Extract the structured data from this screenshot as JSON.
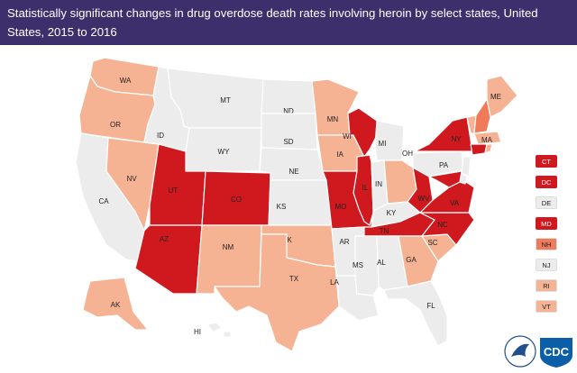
{
  "title": "Statistically significant changes in drug overdose death rates involving heroin by select states, United States, 2015 to 2016",
  "colors": {
    "header_bg": "#3d2f6b",
    "no_change": "#ececec",
    "increase_light": "#f5b394",
    "increase_medium": "#f07b5a",
    "increase_dark": "#d0191f"
  },
  "states": [
    {
      "abbr": "WA",
      "level": "light"
    },
    {
      "abbr": "OR",
      "level": "light"
    },
    {
      "abbr": "CA",
      "level": "none"
    },
    {
      "abbr": "NV",
      "level": "light"
    },
    {
      "abbr": "ID",
      "level": "none"
    },
    {
      "abbr": "MT",
      "level": "none"
    },
    {
      "abbr": "WY",
      "level": "none"
    },
    {
      "abbr": "UT",
      "level": "dark"
    },
    {
      "abbr": "AZ",
      "level": "dark"
    },
    {
      "abbr": "CO",
      "level": "dark"
    },
    {
      "abbr": "NM",
      "level": "light"
    },
    {
      "abbr": "ND",
      "level": "none"
    },
    {
      "abbr": "SD",
      "level": "none"
    },
    {
      "abbr": "NE",
      "level": "none"
    },
    {
      "abbr": "KS",
      "level": "none"
    },
    {
      "abbr": "OK",
      "level": "light"
    },
    {
      "abbr": "TX",
      "level": "light"
    },
    {
      "abbr": "MN",
      "level": "light"
    },
    {
      "abbr": "IA",
      "level": "light"
    },
    {
      "abbr": "MO",
      "level": "dark"
    },
    {
      "abbr": "AR",
      "level": "none"
    },
    {
      "abbr": "LA",
      "level": "none"
    },
    {
      "abbr": "WI",
      "level": "dark"
    },
    {
      "abbr": "IL",
      "level": "dark"
    },
    {
      "abbr": "MI",
      "level": "none"
    },
    {
      "abbr": "IN",
      "level": "none"
    },
    {
      "abbr": "OH",
      "level": "light"
    },
    {
      "abbr": "KY",
      "level": "none"
    },
    {
      "abbr": "TN",
      "level": "dark"
    },
    {
      "abbr": "MS",
      "level": "none"
    },
    {
      "abbr": "AL",
      "level": "none"
    },
    {
      "abbr": "GA",
      "level": "light"
    },
    {
      "abbr": "FL",
      "level": "none"
    },
    {
      "abbr": "SC",
      "level": "light"
    },
    {
      "abbr": "NC",
      "level": "dark"
    },
    {
      "abbr": "VA",
      "level": "dark"
    },
    {
      "abbr": "WV",
      "level": "dark"
    },
    {
      "abbr": "PA",
      "level": "none"
    },
    {
      "abbr": "NY",
      "level": "dark"
    },
    {
      "abbr": "ME",
      "level": "light"
    },
    {
      "abbr": "MA",
      "level": "light"
    },
    {
      "abbr": "AK",
      "level": "light"
    },
    {
      "abbr": "HI",
      "level": "none"
    }
  ],
  "legend": [
    {
      "abbr": "CT",
      "level": "dark"
    },
    {
      "abbr": "DC",
      "level": "dark"
    },
    {
      "abbr": "DE",
      "level": "none"
    },
    {
      "abbr": "MD",
      "level": "dark"
    },
    {
      "abbr": "NH",
      "level": "medium"
    },
    {
      "abbr": "NJ",
      "level": "none"
    },
    {
      "abbr": "RI",
      "level": "light"
    },
    {
      "abbr": "VT",
      "level": "light"
    }
  ],
  "logo": {
    "text": "CDC"
  }
}
